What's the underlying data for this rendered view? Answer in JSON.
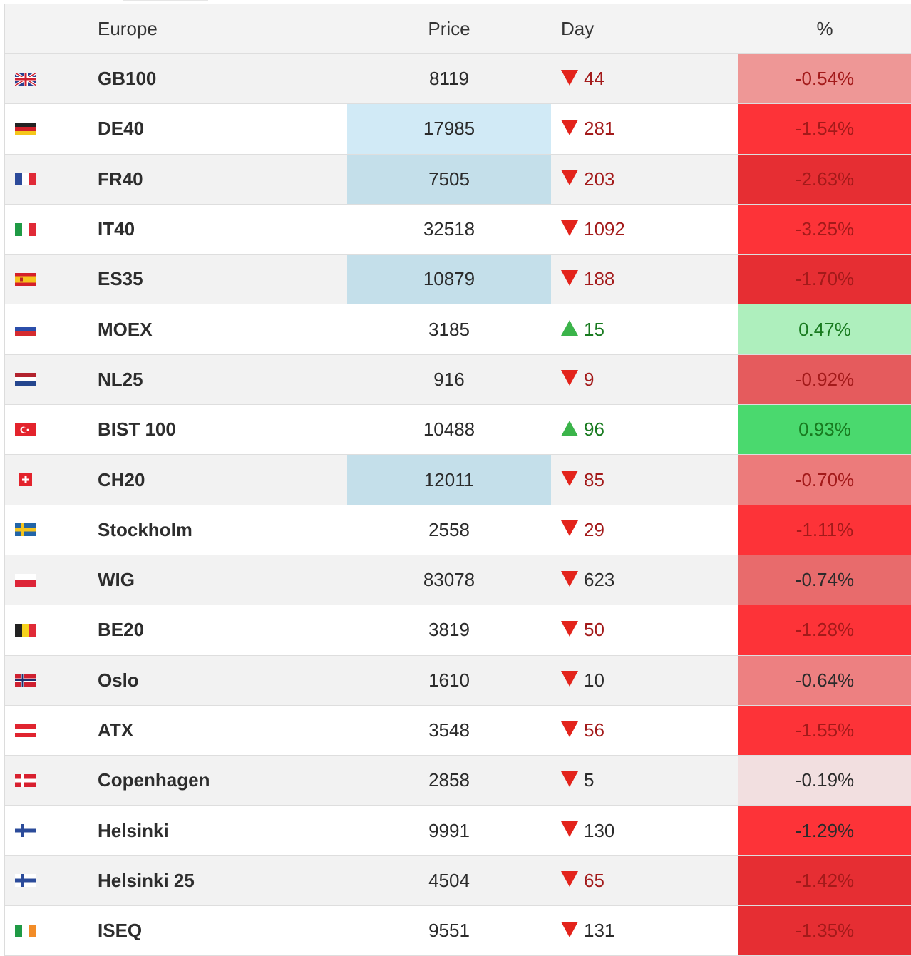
{
  "header": {
    "region": "Europe",
    "price": "Price",
    "day": "Day",
    "pct": "%"
  },
  "colors": {
    "up_arrow": "#3bb44a",
    "down_arrow": "#e3231b",
    "price_highlight_light": "#d1eaf6",
    "price_highlight": "#c4dfea"
  },
  "rows": [
    {
      "flag": "uk-flag-icon",
      "name": "GB100",
      "price": "8119",
      "dir": "down",
      "day": "44",
      "pct": "-0.54%",
      "pct_bg": "#ee9796",
      "pct_color": "#a31a1a",
      "day_color": "neg",
      "price_bg": ""
    },
    {
      "flag": "germany-flag-icon",
      "name": "DE40",
      "price": "17985",
      "dir": "down",
      "day": "281",
      "pct": "-1.54%",
      "pct_bg": "#fd3338",
      "pct_color": "#a31a1a",
      "day_color": "neg",
      "price_bg": "#d1eaf6"
    },
    {
      "flag": "france-flag-icon",
      "name": "FR40",
      "price": "7505",
      "dir": "down",
      "day": "203",
      "pct": "-2.63%",
      "pct_bg": "#e62e33",
      "pct_color": "#a31a1a",
      "day_color": "neg",
      "price_bg": "#c4dfea"
    },
    {
      "flag": "italy-flag-icon",
      "name": "IT40",
      "price": "32518",
      "dir": "down",
      "day": "1092",
      "pct": "-3.25%",
      "pct_bg": "#fd3338",
      "pct_color": "#a31a1a",
      "day_color": "neg",
      "price_bg": ""
    },
    {
      "flag": "spain-flag-icon",
      "name": "ES35",
      "price": "10879",
      "dir": "down",
      "day": "188",
      "pct": "-1.70%",
      "pct_bg": "#e62e33",
      "pct_color": "#a31a1a",
      "day_color": "neg",
      "price_bg": "#c4dfea"
    },
    {
      "flag": "russia-flag-icon",
      "name": "MOEX",
      "price": "3185",
      "dir": "up",
      "day": "15",
      "pct": "0.47%",
      "pct_bg": "#aeefbd",
      "pct_color": "#187a1f",
      "day_color": "pos",
      "price_bg": ""
    },
    {
      "flag": "netherlands-flag-icon",
      "name": "NL25",
      "price": "916",
      "dir": "down",
      "day": "9",
      "pct": "-0.92%",
      "pct_bg": "#e55b5d",
      "pct_color": "#a31a1a",
      "day_color": "neg",
      "price_bg": ""
    },
    {
      "flag": "turkey-flag-icon",
      "name": "BIST 100",
      "price": "10488",
      "dir": "up",
      "day": "96",
      "pct": "0.93%",
      "pct_bg": "#4ad96e",
      "pct_color": "#187a1f",
      "day_color": "pos",
      "price_bg": ""
    },
    {
      "flag": "switzerland-flag-icon",
      "name": "CH20",
      "price": "12011",
      "dir": "down",
      "day": "85",
      "pct": "-0.70%",
      "pct_bg": "#ec7b7b",
      "pct_color": "#a31a1a",
      "day_color": "neg",
      "price_bg": "#c4dfea"
    },
    {
      "flag": "sweden-flag-icon",
      "name": "Stockholm",
      "price": "2558",
      "dir": "down",
      "day": "29",
      "pct": "-1.11%",
      "pct_bg": "#fd3338",
      "pct_color": "#a31a1a",
      "day_color": "neg",
      "price_bg": ""
    },
    {
      "flag": "poland-flag-icon",
      "name": "WIG",
      "price": "83078",
      "dir": "down",
      "day": "623",
      "pct": "-0.74%",
      "pct_bg": "#e86b6c",
      "pct_color": "#2b2b2b",
      "day_color": "neutral",
      "price_bg": ""
    },
    {
      "flag": "belgium-flag-icon",
      "name": "BE20",
      "price": "3819",
      "dir": "down",
      "day": "50",
      "pct": "-1.28%",
      "pct_bg": "#fd3338",
      "pct_color": "#a31a1a",
      "day_color": "neg",
      "price_bg": ""
    },
    {
      "flag": "norway-flag-icon",
      "name": "Oslo",
      "price": "1610",
      "dir": "down",
      "day": "10",
      "pct": "-0.64%",
      "pct_bg": "#ed8081",
      "pct_color": "#2b2b2b",
      "day_color": "neutral",
      "price_bg": ""
    },
    {
      "flag": "austria-flag-icon",
      "name": "ATX",
      "price": "3548",
      "dir": "down",
      "day": "56",
      "pct": "-1.55%",
      "pct_bg": "#fd3338",
      "pct_color": "#a31a1a",
      "day_color": "neg",
      "price_bg": ""
    },
    {
      "flag": "denmark-flag-icon",
      "name": "Copenhagen",
      "price": "2858",
      "dir": "down",
      "day": "5",
      "pct": "-0.19%",
      "pct_bg": "#f2dfe0",
      "pct_color": "#2b2b2b",
      "day_color": "neutral",
      "price_bg": ""
    },
    {
      "flag": "finland-flag-icon",
      "name": "Helsinki",
      "price": "9991",
      "dir": "down",
      "day": "130",
      "pct": "-1.29%",
      "pct_bg": "#fd3338",
      "pct_color": "#2b2b2b",
      "day_color": "neutral",
      "price_bg": ""
    },
    {
      "flag": "finland-flag-icon",
      "name": "Helsinki 25",
      "price": "4504",
      "dir": "down",
      "day": "65",
      "pct": "-1.42%",
      "pct_bg": "#e62e33",
      "pct_color": "#a31a1a",
      "day_color": "neg",
      "price_bg": ""
    },
    {
      "flag": "ireland-flag-icon",
      "name": "ISEQ",
      "price": "9551",
      "dir": "down",
      "day": "131",
      "pct": "-1.35%",
      "pct_bg": "#e62e33",
      "pct_color": "#a31a1a",
      "day_color": "neutral",
      "price_bg": ""
    }
  ]
}
